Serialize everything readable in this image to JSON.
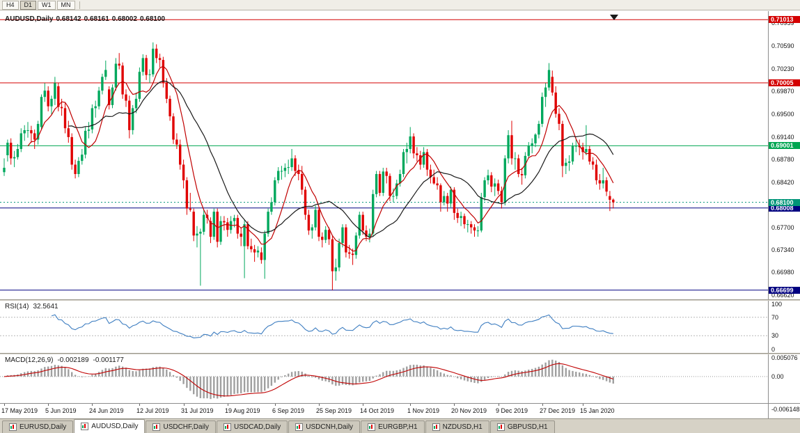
{
  "toolbar": {
    "timeframes": [
      {
        "label": "H4",
        "active": false
      },
      {
        "label": "D1",
        "active": true
      },
      {
        "label": "W1",
        "active": false
      },
      {
        "label": "MN",
        "active": false
      }
    ]
  },
  "chart": {
    "title": {
      "symbol": "AUDUSD,Daily",
      "open": "0.68142",
      "high": "0.68161",
      "low": "0.68002",
      "close": "0.68100"
    },
    "price_axis": {
      "y_max": 0.71148,
      "y_min": 0.66552,
      "labels": [
        "0.70959",
        "0.70590",
        "0.70230",
        "0.69870",
        "0.69500",
        "0.69140",
        "0.68780",
        "0.68420",
        "0.67700",
        "0.67340",
        "0.66980",
        "0.66620"
      ]
    },
    "hlines": [
      {
        "label": "0.71013",
        "value": 0.71013,
        "color": "#d40000"
      },
      {
        "label": "0.70005",
        "value": 0.70005,
        "color": "#d40000"
      },
      {
        "label": "0.69001",
        "value": 0.69001,
        "color": "#00a651"
      },
      {
        "label": "0.68008",
        "value": 0.68008,
        "color": "#000080"
      },
      {
        "label": "0.66699",
        "value": 0.66699,
        "color": "#000080"
      }
    ],
    "current_price": {
      "label": "0.68100",
      "value": 0.681,
      "color": "#009578"
    },
    "colors": {
      "bull": "#00a85d",
      "bear": "#e00000"
    },
    "ma": [
      {
        "period": 8,
        "color": "#c00000"
      },
      {
        "period": 20,
        "color": "#1a1a1a"
      }
    ],
    "date_axis": [
      {
        "label": "17 May 2019",
        "i": 0
      },
      {
        "label": "5 Jun 2019",
        "i": 13
      },
      {
        "label": "24 Jun 2019",
        "i": 26
      },
      {
        "label": "12 Jul 2019",
        "i": 40
      },
      {
        "label": "31 Jul 2019",
        "i": 53
      },
      {
        "label": "19 Aug 2019",
        "i": 66
      },
      {
        "label": "6 Sep 2019",
        "i": 80
      },
      {
        "label": "25 Sep 2019",
        "i": 93
      },
      {
        "label": "14 Oct 2019",
        "i": 106
      },
      {
        "label": "1 Nov 2019",
        "i": 120
      },
      {
        "label": "20 Nov 2019",
        "i": 133
      },
      {
        "label": "9 Dec 2019",
        "i": 146
      },
      {
        "label": "27 Dec 2019",
        "i": 159
      },
      {
        "label": "15 Jan 2020",
        "i": 171
      }
    ],
    "candles": [
      [
        0.6858,
        0.688,
        0.6852,
        0.6865
      ],
      [
        0.6885,
        0.691,
        0.6875,
        0.6905
      ],
      [
        0.6905,
        0.6912,
        0.687,
        0.688
      ],
      [
        0.688,
        0.6892,
        0.6866,
        0.6882
      ],
      [
        0.6882,
        0.6903,
        0.6878,
        0.6895
      ],
      [
        0.6895,
        0.6928,
        0.689,
        0.692
      ],
      [
        0.692,
        0.6933,
        0.6908,
        0.6925
      ],
      [
        0.6925,
        0.6938,
        0.6913,
        0.6925
      ],
      [
        0.6925,
        0.6932,
        0.6905,
        0.692
      ],
      [
        0.692,
        0.6926,
        0.6895,
        0.691
      ],
      [
        0.691,
        0.694,
        0.6902,
        0.6935
      ],
      [
        0.693,
        0.6982,
        0.6925,
        0.6978
      ],
      [
        0.6978,
        0.7,
        0.697,
        0.6988
      ],
      [
        0.6988,
        0.6995,
        0.6955,
        0.6963
      ],
      [
        0.6963,
        0.698,
        0.695,
        0.6975
      ],
      [
        0.6975,
        0.701,
        0.6965,
        0.7
      ],
      [
        0.6995,
        0.7,
        0.6955,
        0.6962
      ],
      [
        0.6962,
        0.6975,
        0.6948,
        0.696
      ],
      [
        0.696,
        0.6968,
        0.692,
        0.6928
      ],
      [
        0.6928,
        0.694,
        0.6905,
        0.6914
      ],
      [
        0.6914,
        0.692,
        0.6862,
        0.687
      ],
      [
        0.687,
        0.6878,
        0.6848,
        0.6855
      ],
      [
        0.6855,
        0.6882,
        0.685,
        0.6876
      ],
      [
        0.6876,
        0.6895,
        0.687,
        0.6886
      ],
      [
        0.6886,
        0.693,
        0.688,
        0.6924
      ],
      [
        0.6924,
        0.6938,
        0.6912,
        0.6926
      ],
      [
        0.6926,
        0.6966,
        0.692,
        0.696
      ],
      [
        0.696,
        0.6972,
        0.6945,
        0.6963
      ],
      [
        0.6963,
        0.6994,
        0.6958,
        0.6988
      ],
      [
        0.6988,
        0.7015,
        0.6982,
        0.701
      ],
      [
        0.701,
        0.7036,
        0.7005,
        0.7021
      ],
      [
        0.699,
        0.6995,
        0.6958,
        0.6965
      ],
      [
        0.6965,
        0.6998,
        0.696,
        0.6993
      ],
      [
        0.6993,
        0.704,
        0.6988,
        0.7031
      ],
      [
        0.7031,
        0.7048,
        0.7022,
        0.7028
      ],
      [
        0.7028,
        0.7033,
        0.6975,
        0.6982
      ],
      [
        0.6982,
        0.699,
        0.6962,
        0.6972
      ],
      [
        0.6972,
        0.698,
        0.6912,
        0.6925
      ],
      [
        0.6925,
        0.6965,
        0.6918,
        0.696
      ],
      [
        0.696,
        0.6985,
        0.6952,
        0.6975
      ],
      [
        0.6975,
        0.7025,
        0.697,
        0.7018
      ],
      [
        0.7018,
        0.7046,
        0.7012,
        0.704
      ],
      [
        0.704,
        0.7045,
        0.7005,
        0.7013
      ],
      [
        0.7013,
        0.7022,
        0.7,
        0.7014
      ],
      [
        0.7014,
        0.7065,
        0.701,
        0.7055
      ],
      [
        0.7055,
        0.7062,
        0.7032,
        0.704
      ],
      [
        0.704,
        0.7047,
        0.7025,
        0.7037
      ],
      [
        0.7037,
        0.7042,
        0.6993,
        0.7
      ],
      [
        0.7,
        0.7008,
        0.6968,
        0.6975
      ],
      [
        0.6975,
        0.698,
        0.694,
        0.6947
      ],
      [
        0.6947,
        0.6952,
        0.6903,
        0.691
      ],
      [
        0.691,
        0.692,
        0.6895,
        0.6902
      ],
      [
        0.6902,
        0.691,
        0.6862,
        0.687
      ],
      [
        0.687,
        0.6878,
        0.6832,
        0.6845
      ],
      [
        0.6845,
        0.685,
        0.679,
        0.68
      ],
      [
        0.68,
        0.6825,
        0.6795,
        0.6798
      ],
      [
        0.6795,
        0.68,
        0.6748,
        0.6757
      ],
      [
        0.6757,
        0.6772,
        0.6738,
        0.676
      ],
      [
        0.676,
        0.6768,
        0.6677,
        0.6763
      ],
      [
        0.6763,
        0.6798,
        0.6758,
        0.679
      ],
      [
        0.679,
        0.6798,
        0.6776,
        0.6785
      ],
      [
        0.678,
        0.6786,
        0.6745,
        0.6755
      ],
      [
        0.6755,
        0.68,
        0.675,
        0.6795
      ],
      [
        0.6795,
        0.68,
        0.6738,
        0.6747
      ],
      [
        0.6747,
        0.6788,
        0.6742,
        0.678
      ],
      [
        0.678,
        0.6788,
        0.6765,
        0.6778
      ],
      [
        0.6778,
        0.6785,
        0.6755,
        0.6766
      ],
      [
        0.6766,
        0.6788,
        0.676,
        0.678
      ],
      [
        0.678,
        0.679,
        0.677,
        0.6785
      ],
      [
        0.6785,
        0.679,
        0.6752,
        0.676
      ],
      [
        0.676,
        0.677,
        0.674,
        0.6755
      ],
      [
        0.674,
        0.6782,
        0.6689,
        0.6775
      ],
      [
        0.6775,
        0.678,
        0.6735,
        0.674
      ],
      [
        0.674,
        0.6752,
        0.673,
        0.6735
      ],
      [
        0.6735,
        0.6742,
        0.6715,
        0.673
      ],
      [
        0.673,
        0.674,
        0.6722,
        0.6733
      ],
      [
        0.673,
        0.6738,
        0.6712,
        0.6718
      ],
      [
        0.6718,
        0.6765,
        0.6688,
        0.676
      ],
      [
        0.676,
        0.68,
        0.6755,
        0.6795
      ],
      [
        0.6795,
        0.6818,
        0.679,
        0.681
      ],
      [
        0.681,
        0.685,
        0.6805,
        0.6845
      ],
      [
        0.6845,
        0.6866,
        0.684,
        0.686
      ],
      [
        0.686,
        0.6868,
        0.6846,
        0.686
      ],
      [
        0.686,
        0.6872,
        0.685,
        0.6865
      ],
      [
        0.6865,
        0.6878,
        0.6855,
        0.6866
      ],
      [
        0.6866,
        0.6895,
        0.686,
        0.688
      ],
      [
        0.688,
        0.6885,
        0.6852,
        0.686
      ],
      [
        0.686,
        0.687,
        0.6845,
        0.6855
      ],
      [
        0.6855,
        0.6868,
        0.6822,
        0.683
      ],
      [
        0.683,
        0.6835,
        0.6782,
        0.679
      ],
      [
        0.679,
        0.6798,
        0.6758,
        0.6765
      ],
      [
        0.6765,
        0.6775,
        0.6752,
        0.677
      ],
      [
        0.677,
        0.6805,
        0.6765,
        0.6798
      ],
      [
        0.6798,
        0.6802,
        0.6748,
        0.6755
      ],
      [
        0.6755,
        0.6762,
        0.6738,
        0.675
      ],
      [
        0.675,
        0.6772,
        0.6745,
        0.6766
      ],
      [
        0.6766,
        0.677,
        0.6742,
        0.6751
      ],
      [
        0.6751,
        0.6756,
        0.667,
        0.67
      ],
      [
        0.67,
        0.672,
        0.6685,
        0.6706
      ],
      [
        0.6706,
        0.6752,
        0.67,
        0.6745
      ],
      [
        0.6745,
        0.6775,
        0.6738,
        0.677
      ],
      [
        0.677,
        0.6775,
        0.6722,
        0.673
      ],
      [
        0.673,
        0.6742,
        0.672,
        0.6728
      ],
      [
        0.6728,
        0.6736,
        0.671,
        0.6726
      ],
      [
        0.6726,
        0.6762,
        0.672,
        0.6757
      ],
      [
        0.6757,
        0.6795,
        0.6752,
        0.679
      ],
      [
        0.679,
        0.6795,
        0.6758,
        0.6765
      ],
      [
        0.6765,
        0.6773,
        0.6748,
        0.6755
      ],
      [
        0.6755,
        0.6768,
        0.6746,
        0.676
      ],
      [
        0.676,
        0.683,
        0.6755,
        0.6823
      ],
      [
        0.6823,
        0.686,
        0.6818,
        0.6855
      ],
      [
        0.6855,
        0.686,
        0.682,
        0.6825
      ],
      [
        0.6825,
        0.6865,
        0.682,
        0.6859
      ],
      [
        0.6859,
        0.6865,
        0.684,
        0.6852
      ],
      [
        0.6852,
        0.6856,
        0.6812,
        0.682
      ],
      [
        0.682,
        0.6832,
        0.681,
        0.682
      ],
      [
        0.682,
        0.6846,
        0.6815,
        0.684
      ],
      [
        0.684,
        0.6862,
        0.6835,
        0.6855
      ],
      [
        0.6855,
        0.6895,
        0.685,
        0.689
      ],
      [
        0.689,
        0.6905,
        0.6872,
        0.6895
      ],
      [
        0.6895,
        0.693,
        0.6888,
        0.6915
      ],
      [
        0.6915,
        0.692,
        0.688,
        0.6888
      ],
      [
        0.6888,
        0.6898,
        0.6875,
        0.6885
      ],
      [
        0.6885,
        0.6892,
        0.6862,
        0.687
      ],
      [
        0.687,
        0.6898,
        0.6865,
        0.689
      ],
      [
        0.689,
        0.6895,
        0.6852,
        0.6862
      ],
      [
        0.6862,
        0.687,
        0.684,
        0.685
      ],
      [
        0.685,
        0.6862,
        0.6838,
        0.684
      ],
      [
        0.684,
        0.685,
        0.683,
        0.6837
      ],
      [
        0.6837,
        0.684,
        0.6795,
        0.681
      ],
      [
        0.681,
        0.6828,
        0.6805,
        0.682
      ],
      [
        0.682,
        0.6825,
        0.6795,
        0.6808
      ],
      [
        0.6808,
        0.6835,
        0.6802,
        0.683
      ],
      [
        0.683,
        0.6834,
        0.6782,
        0.6793
      ],
      [
        0.6793,
        0.68,
        0.6777,
        0.6785
      ],
      [
        0.6785,
        0.6795,
        0.6772,
        0.6788
      ],
      [
        0.6788,
        0.6792,
        0.6768,
        0.6775
      ],
      [
        0.6775,
        0.6782,
        0.6762,
        0.6775
      ],
      [
        0.6775,
        0.678,
        0.676,
        0.677
      ],
      [
        0.677,
        0.6775,
        0.6755,
        0.6765
      ],
      [
        0.6765,
        0.6772,
        0.6755,
        0.6765
      ],
      [
        0.6765,
        0.6825,
        0.6762,
        0.6818
      ],
      [
        0.6818,
        0.685,
        0.6812,
        0.6845
      ],
      [
        0.6845,
        0.6862,
        0.6838,
        0.6853
      ],
      [
        0.6853,
        0.6858,
        0.6826,
        0.6835
      ],
      [
        0.6835,
        0.6848,
        0.682,
        0.684
      ],
      [
        0.684,
        0.6846,
        0.6822,
        0.6828
      ],
      [
        0.6828,
        0.6835,
        0.68,
        0.681
      ],
      [
        0.681,
        0.6885,
        0.6805,
        0.688
      ],
      [
        0.688,
        0.6925,
        0.6872,
        0.6917
      ],
      [
        0.6917,
        0.694,
        0.687,
        0.688
      ],
      [
        0.688,
        0.689,
        0.6862,
        0.688
      ],
      [
        0.688,
        0.6886,
        0.685,
        0.6855
      ],
      [
        0.6855,
        0.6865,
        0.6838,
        0.6853
      ],
      [
        0.6853,
        0.689,
        0.6848,
        0.6884
      ],
      [
        0.6884,
        0.6906,
        0.688,
        0.69
      ],
      [
        0.69,
        0.6912,
        0.6888,
        0.6904
      ],
      [
        0.6904,
        0.692,
        0.6898,
        0.6918
      ],
      [
        0.6918,
        0.694,
        0.6912,
        0.6935
      ],
      [
        0.6935,
        0.6985,
        0.693,
        0.6978
      ],
      [
        0.6978,
        0.7,
        0.6962,
        0.6993
      ],
      [
        0.6993,
        0.7032,
        0.6988,
        0.7021
      ],
      [
        0.701,
        0.702,
        0.698,
        0.6985
      ],
      [
        0.6985,
        0.6995,
        0.6945,
        0.6951
      ],
      [
        0.6951,
        0.696,
        0.6925,
        0.6935
      ],
      [
        0.6935,
        0.694,
        0.685,
        0.6868
      ],
      [
        0.6868,
        0.688,
        0.6855,
        0.6873
      ],
      [
        0.6873,
        0.6885,
        0.686,
        0.6875
      ],
      [
        0.6875,
        0.6905,
        0.687,
        0.69
      ],
      [
        0.69,
        0.691,
        0.689,
        0.69
      ],
      [
        0.69,
        0.691,
        0.6885,
        0.6898
      ],
      [
        0.6898,
        0.6905,
        0.6878,
        0.689
      ],
      [
        0.689,
        0.6933,
        0.6885,
        0.6895
      ],
      [
        0.6895,
        0.69,
        0.687,
        0.6875
      ],
      [
        0.6875,
        0.6882,
        0.6862,
        0.687
      ],
      [
        0.687,
        0.6878,
        0.6838,
        0.6845
      ],
      [
        0.6845,
        0.6855,
        0.683,
        0.684
      ],
      [
        0.684,
        0.6865,
        0.6832,
        0.6845
      ],
      [
        0.6845,
        0.685,
        0.682,
        0.6827
      ],
      [
        0.682,
        0.6828,
        0.6796,
        0.6814
      ],
      [
        0.68142,
        0.68161,
        0.68002,
        0.681
      ]
    ]
  },
  "rsi": {
    "label": "RSI(14)",
    "value": "32.5641",
    "period": 14,
    "color": "#3e7ec1",
    "axis": [
      {
        "label": "100",
        "value": 100
      },
      {
        "label": "70",
        "value": 70
      },
      {
        "label": "30",
        "value": 30
      },
      {
        "label": "0",
        "value": 0
      }
    ],
    "level_lines": [
      70,
      30
    ]
  },
  "macd": {
    "label": "MACD(12,26,9)",
    "value_main": "-0.002189",
    "value_signal": "-0.001177",
    "fast": 12,
    "slow": 26,
    "signal_period": 9,
    "colors": {
      "hist": "#a0a0a0",
      "signal": "#c00000"
    },
    "scale_top": {
      "label": "0.005076",
      "value": 0.005076
    },
    "scale_zero": {
      "label": "0.00",
      "value": 0
    },
    "scale_bottom": {
      "label": "-0.006148",
      "value": -0.006148
    }
  },
  "tabs": [
    {
      "label": "EURUSD,Daily",
      "active": false
    },
    {
      "label": "AUDUSD,Daily",
      "active": true
    },
    {
      "label": "USDCHF,Daily",
      "active": false
    },
    {
      "label": "USDCAD,Daily",
      "active": false
    },
    {
      "label": "USDCNH,Daily",
      "active": false
    },
    {
      "label": "EURGBP,H1",
      "active": false
    },
    {
      "label": "NZDUSD,H1",
      "active": false
    },
    {
      "label": "GBPUSD,H1",
      "active": false
    }
  ]
}
